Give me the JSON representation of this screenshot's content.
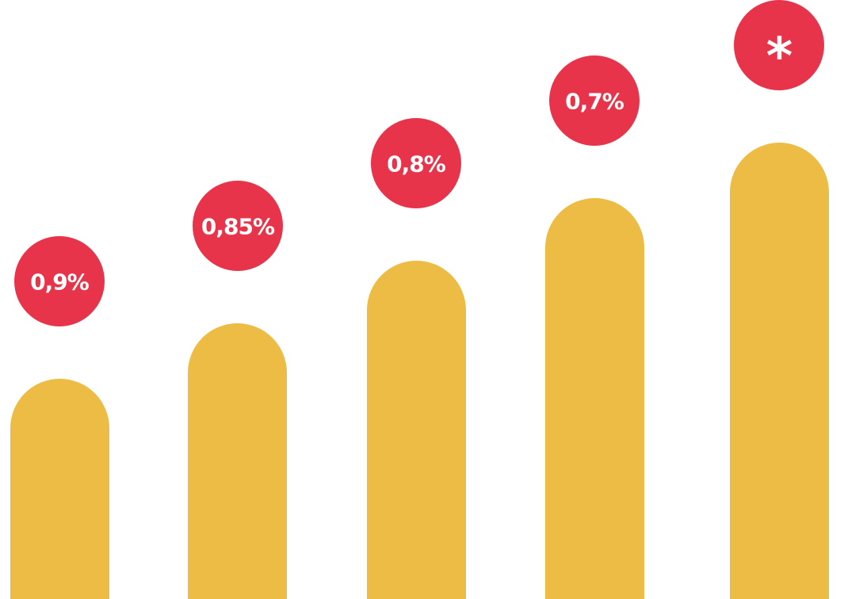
{
  "items": [
    {
      "label": "0,9%"
    },
    {
      "label": "0,85%"
    },
    {
      "label": "0,8%"
    },
    {
      "label": "0,7%"
    },
    {
      "label": "*"
    }
  ]
}
